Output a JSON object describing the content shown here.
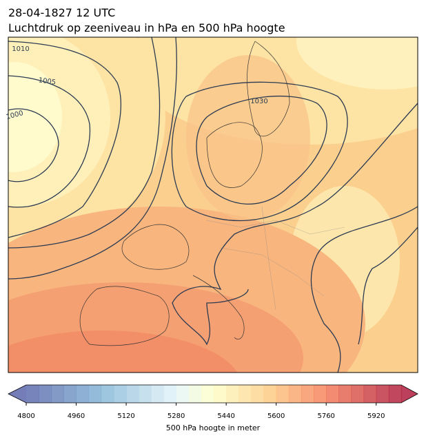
{
  "title": "28-04-1827 12 UTC",
  "subtitle": "Luchtdruk op zeeniveau in hPa en 500 hPa hoogte",
  "contour_labels": [
    1010,
    1005,
    1000,
    1030
  ],
  "colorbar": {
    "label": "500 hPa hoogte in meter",
    "range": [
      4800,
      6000
    ],
    "ticks": [
      4800,
      4960,
      5120,
      5280,
      5440,
      5600,
      5760,
      5920
    ]
  }
}
